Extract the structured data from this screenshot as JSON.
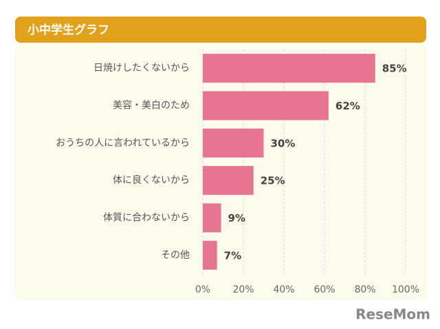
{
  "chart_data": {
    "type": "bar",
    "orientation": "horizontal",
    "title": "小中学生グラフ",
    "categories": [
      "日焼けしたくないから",
      "美容・美白のため",
      "おうちの人に言われているから",
      "体に良くないから",
      "体質に合わないから",
      "その他"
    ],
    "values": [
      85,
      62,
      30,
      25,
      9,
      7
    ],
    "value_labels": [
      "85%",
      "62%",
      "30%",
      "25%",
      "9%",
      "7%"
    ],
    "color": "#e8758e",
    "xlim": [
      0,
      100
    ],
    "xticks": [
      {
        "value": 0,
        "label": "0%"
      },
      {
        "value": 20,
        "label": "20%"
      },
      {
        "value": 40,
        "label": "40%"
      },
      {
        "value": 60,
        "label": "60%"
      },
      {
        "value": 80,
        "label": "80%"
      },
      {
        "value": 100,
        "label": "100%"
      }
    ],
    "grid": true
  },
  "watermark": "ReseMom"
}
